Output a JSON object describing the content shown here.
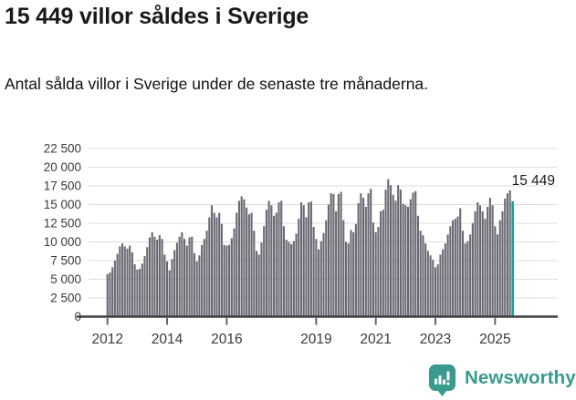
{
  "header": {
    "title": "15 449 villor såldes i Sverige",
    "subtitle": "Antal sålda villor i Sverige under de senaste tre månaderna."
  },
  "chart_data": {
    "type": "bar",
    "title": "15 449 villor såldes i Sverige",
    "subtitle": "Antal sålda villor i Sverige under de senaste tre månaderna.",
    "frequency": "monthly",
    "x_start": "2012-01",
    "x_end": "2025-08",
    "values": [
      5700,
      5900,
      6600,
      7500,
      8400,
      9400,
      9800,
      9400,
      9100,
      9500,
      8600,
      7000,
      6300,
      6400,
      7100,
      8100,
      9300,
      10600,
      11300,
      10700,
      10300,
      10900,
      10400,
      8300,
      7400,
      6200,
      7700,
      8900,
      9900,
      10700,
      11300,
      10400,
      9500,
      10600,
      10700,
      8500,
      7400,
      8200,
      9600,
      10400,
      11500,
      13300,
      14900,
      13900,
      13300,
      13900,
      12400,
      9600,
      9500,
      9600,
      10500,
      11800,
      13900,
      15500,
      16100,
      15700,
      14600,
      13700,
      13900,
      11500,
      8800,
      8300,
      9900,
      12100,
      14300,
      15500,
      14900,
      13500,
      13900,
      15300,
      15500,
      12100,
      10300,
      10000,
      9700,
      10100,
      11100,
      13100,
      15300,
      14900,
      13300,
      15300,
      15400,
      12000,
      10400,
      9000,
      10100,
      11200,
      12900,
      15000,
      16500,
      16400,
      14100,
      16400,
      16700,
      12900,
      10000,
      9800,
      11600,
      11300,
      12400,
      15200,
      16500,
      15900,
      14700,
      16500,
      17100,
      12600,
      11300,
      12000,
      14100,
      14300,
      17000,
      18400,
      17600,
      16300,
      15500,
      17600,
      17000,
      15100,
      14900,
      14700,
      15700,
      16600,
      16800,
      13500,
      11500,
      10900,
      9800,
      8800,
      8200,
      7600,
      6600,
      7000,
      8300,
      9000,
      9800,
      11000,
      12100,
      12900,
      13100,
      13400,
      14500,
      11500,
      9800,
      10100,
      11000,
      12500,
      14100,
      15300,
      14900,
      14100,
      13100,
      14700,
      15900,
      14900,
      12100,
      11000,
      12900,
      14100,
      15800,
      16500,
      16900,
      15449
    ],
    "highlight": {
      "index": 163,
      "value": 15449,
      "label": "15 449",
      "color": "#18a2a2"
    },
    "bar_color": "#696973",
    "ylim": [
      0,
      22500
    ],
    "y_tick_values": [
      0,
      2500,
      5000,
      7500,
      10000,
      12500,
      15000,
      17500,
      20000,
      22500
    ],
    "y_tick_labels": [
      "0",
      "2 500",
      "5 000",
      "7 500",
      "10 000",
      "12 500",
      "15 000",
      "17 500",
      "20 000",
      "22 500"
    ],
    "x_tick_years": [
      2012,
      2014,
      2016,
      2019,
      2021,
      2023,
      2025
    ],
    "x_tick_labels": [
      "2012",
      "2014",
      "2016",
      "2019",
      "2021",
      "2023",
      "2025"
    ],
    "grid": true,
    "legend": "none",
    "grid_color": "#dcdcdc",
    "axis_color": "#3f3f46",
    "tick_color": "#666666",
    "label_color": "#3a3a3a",
    "annotation_color": "#1a1a1a"
  },
  "footer": {
    "brand": "Newsworthy",
    "brand_color": "#3a9a8e",
    "logo_icon": "speech-bubble-bar-chart-icon"
  }
}
